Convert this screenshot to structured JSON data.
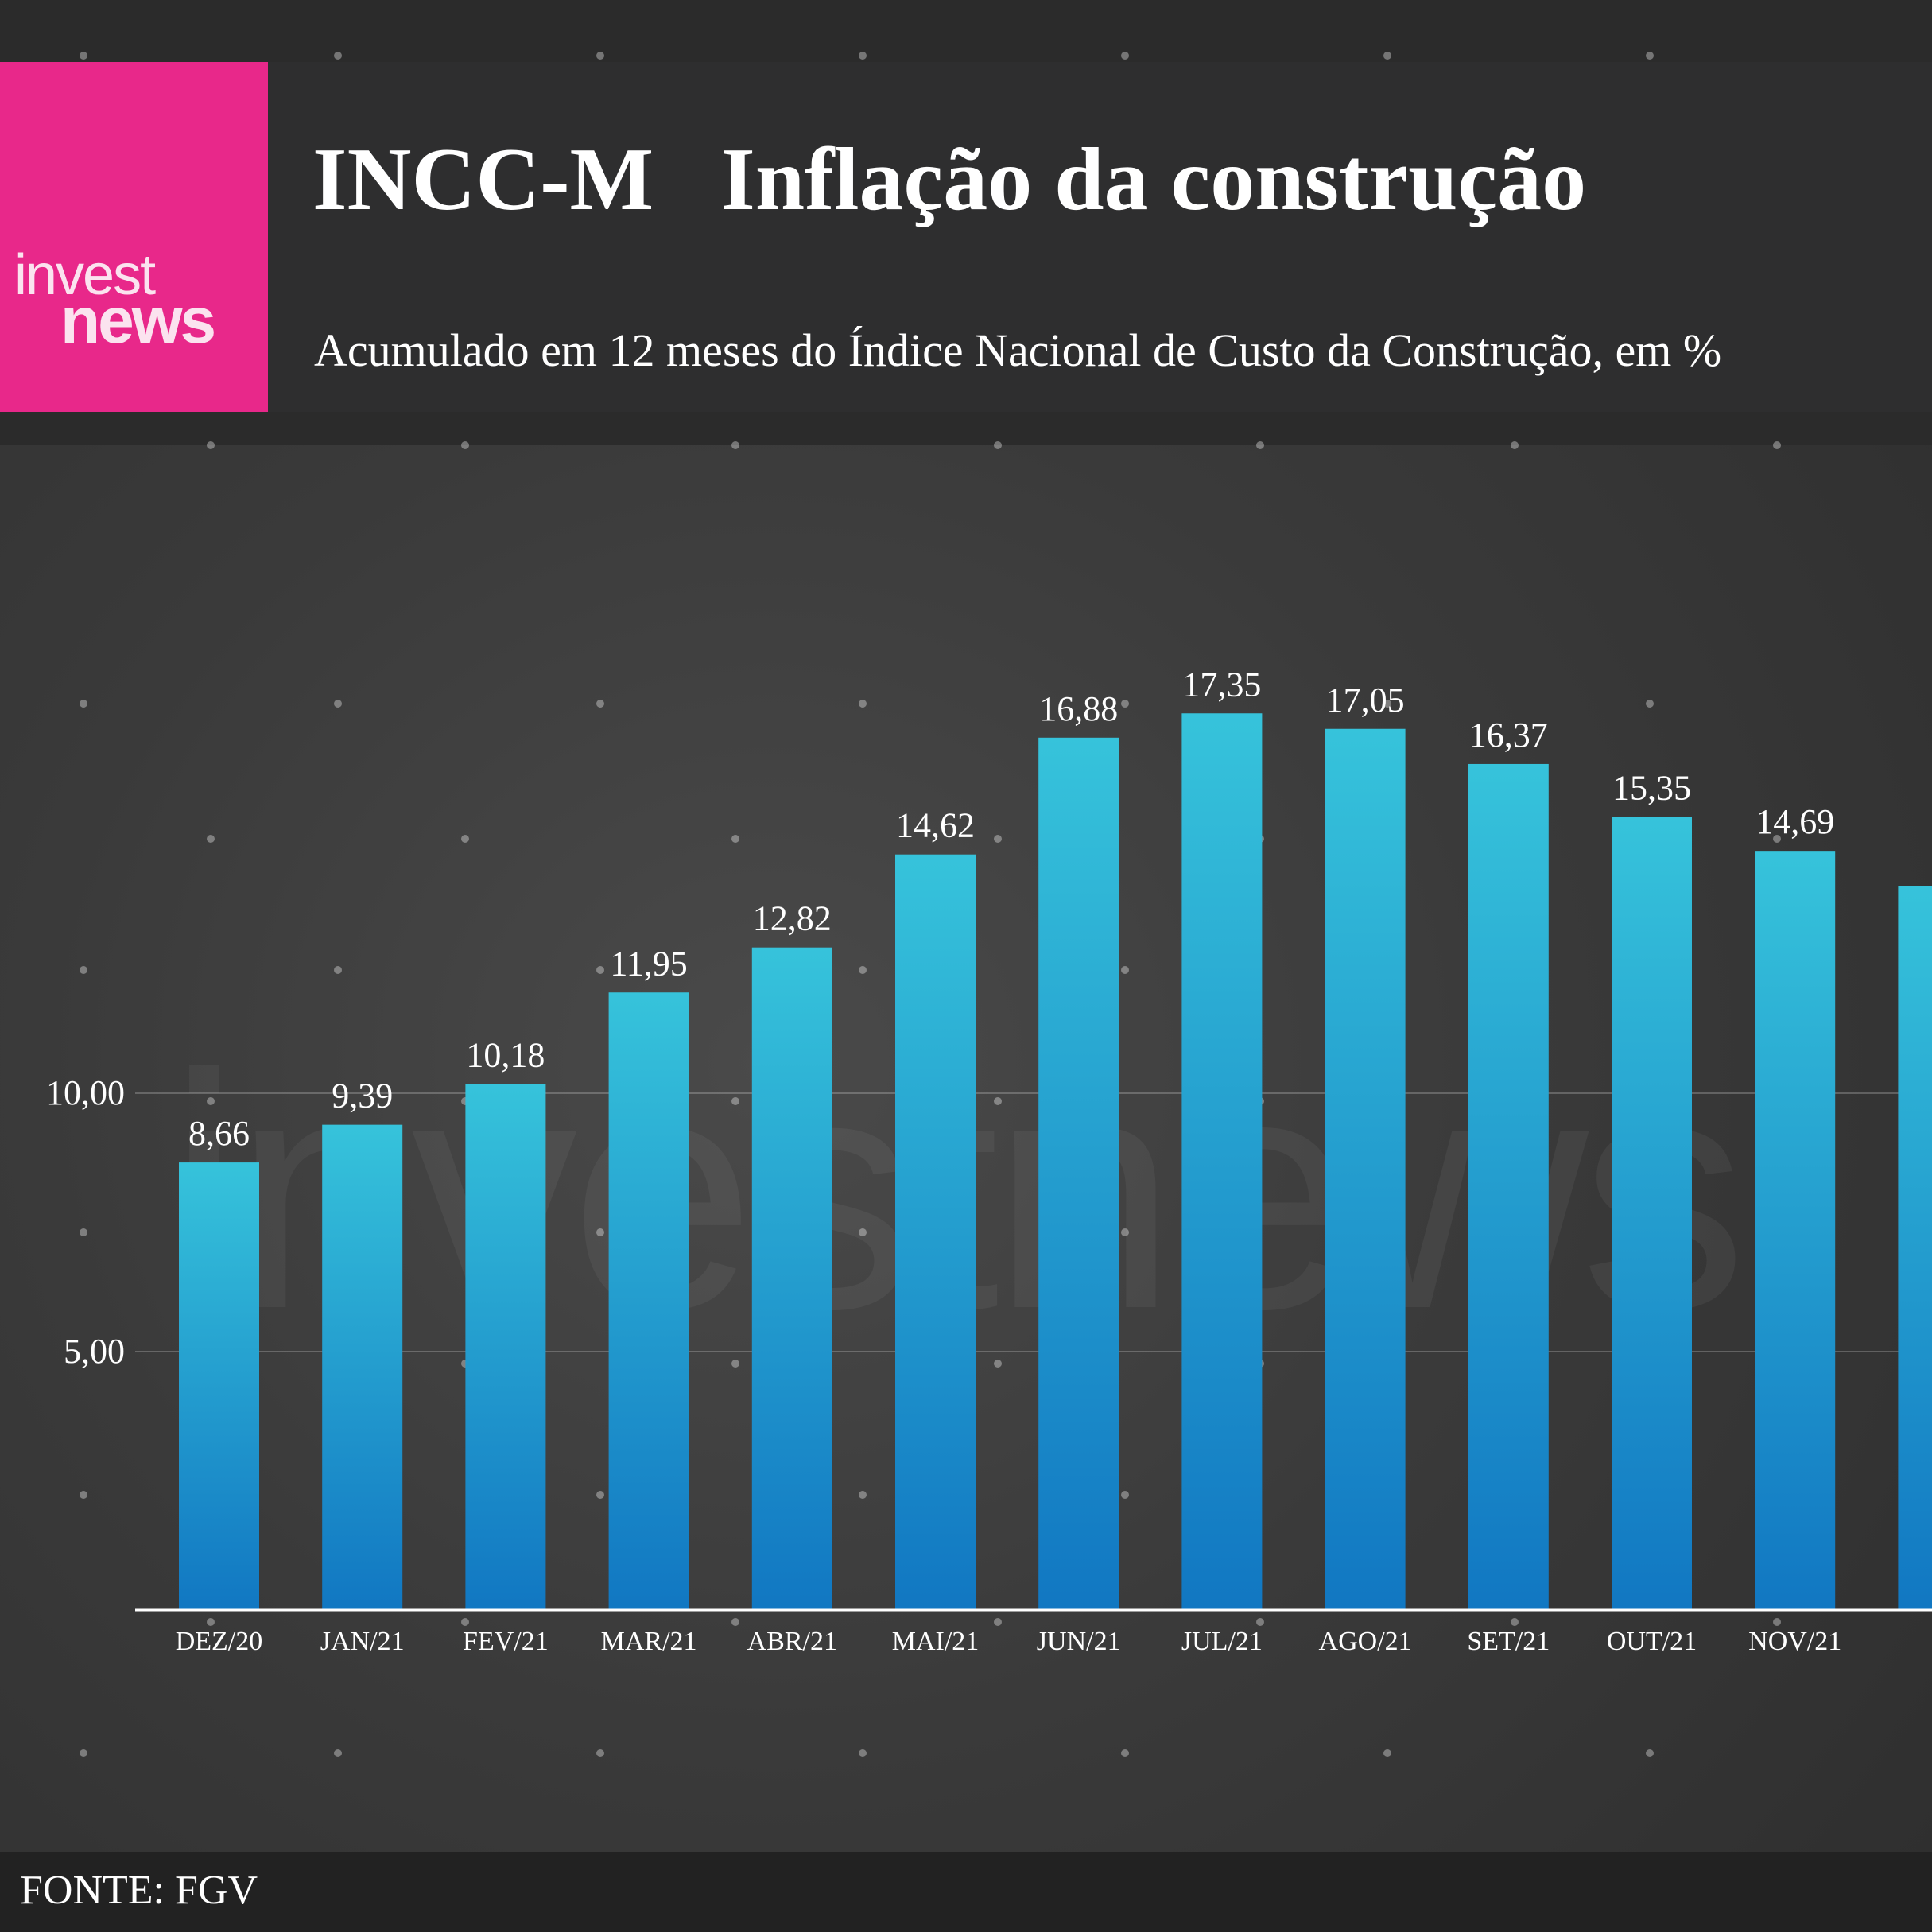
{
  "logo": {
    "line1": "invest",
    "line2": "news"
  },
  "header": {
    "title": "INCC-M   Inflação da construção",
    "subtitle": "Acumulado em 12 meses do Índice Nacional de Custo da Construção, em %"
  },
  "watermark": "investnews",
  "chart_data": {
    "type": "bar",
    "categories": [
      "DEZ/20",
      "JAN/21",
      "FEV/21",
      "MAR/21",
      "ABR/21",
      "MAI/21",
      "JUN/21",
      "JUL/21",
      "AGO/21",
      "SET/21",
      "OUT/21",
      "NOV/21"
    ],
    "values": [
      8.66,
      9.39,
      10.18,
      11.95,
      12.82,
      14.62,
      16.88,
      17.35,
      17.05,
      16.37,
      15.35,
      14.69
    ],
    "labels": [
      "8,66",
      "9,39",
      "10,18",
      "11,95",
      "12,82",
      "14,62",
      "16,88",
      "17,35",
      "17,05",
      "16,37",
      "15,35",
      "14,69"
    ],
    "partial_bar_value": 14.0,
    "yticks": [
      5,
      10
    ],
    "ytick_labels": [
      "5,00",
      "10,00"
    ],
    "ylim": [
      0,
      19
    ],
    "grid": true,
    "colors": {
      "bar_top": "#36c3db",
      "bar_bottom": "#1177c2",
      "axis": "#ffffff"
    }
  },
  "source": "FONTE: FGV"
}
